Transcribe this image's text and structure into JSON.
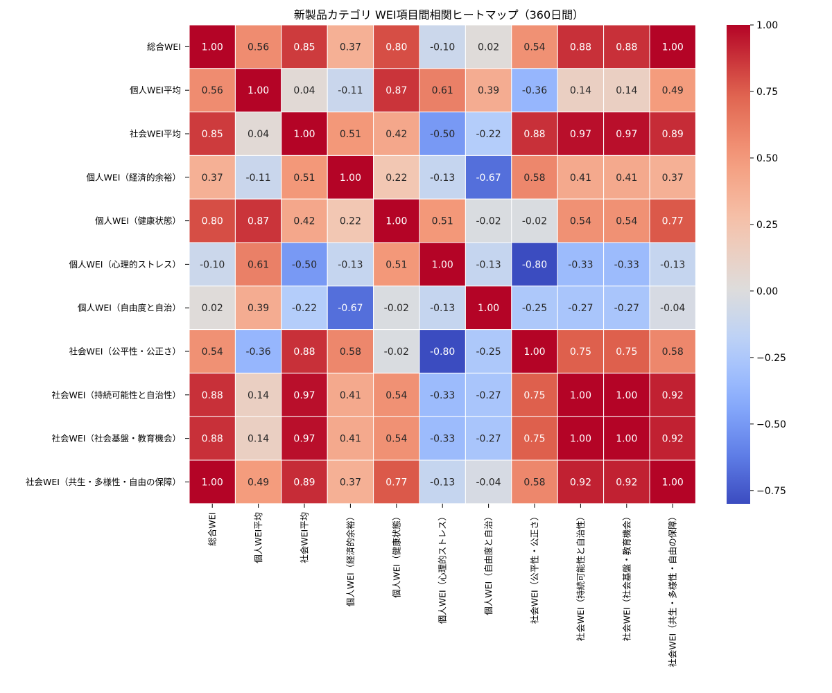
{
  "chart_data": {
    "type": "heatmap",
    "title": "新製品カテゴリ WEI項目間相関ヒートマップ（360日間）",
    "row_labels": [
      "総合WEI",
      "個人WEI平均",
      "社会WEI平均",
      "個人WEI（経済的余裕）",
      "個人WEI（健康状態）",
      "個人WEI（心理的ストレス）",
      "個人WEI（自由度と自治）",
      "社会WEI（公平性・公正さ）",
      "社会WEI（持続可能性と自治性）",
      "社会WEI（社会基盤・教育機会）",
      "社会WEI（共生・多様性・自由の保障）"
    ],
    "col_labels": [
      "総合WEI",
      "個人WEI平均",
      "社会WEI平均",
      "個人WEI（経済的余裕）",
      "個人WEI（健康状態）",
      "個人WEI（心理的ストレス）",
      "個人WEI（自由度と自治）",
      "社会WEI（公平性・公正さ）",
      "社会WEI（持続可能性と自治性）",
      "社会WEI（社会基盤・教育機会）",
      "社会WEI（共生・多様性・自由の保障）"
    ],
    "values": [
      [
        1.0,
        0.56,
        0.85,
        0.37,
        0.8,
        -0.1,
        0.02,
        0.54,
        0.88,
        0.88,
        1.0
      ],
      [
        0.56,
        1.0,
        0.04,
        -0.11,
        0.87,
        0.61,
        0.39,
        -0.36,
        0.14,
        0.14,
        0.49
      ],
      [
        0.85,
        0.04,
        1.0,
        0.51,
        0.42,
        -0.5,
        -0.22,
        0.88,
        0.97,
        0.97,
        0.89
      ],
      [
        0.37,
        -0.11,
        0.51,
        1.0,
        0.22,
        -0.13,
        -0.67,
        0.58,
        0.41,
        0.41,
        0.37
      ],
      [
        0.8,
        0.87,
        0.42,
        0.22,
        1.0,
        0.51,
        -0.02,
        -0.02,
        0.54,
        0.54,
        0.77
      ],
      [
        -0.1,
        0.61,
        -0.5,
        -0.13,
        0.51,
        1.0,
        -0.13,
        -0.8,
        -0.33,
        -0.33,
        -0.13
      ],
      [
        0.02,
        0.39,
        -0.22,
        -0.67,
        -0.02,
        -0.13,
        1.0,
        -0.25,
        -0.27,
        -0.27,
        -0.04
      ],
      [
        0.54,
        -0.36,
        0.88,
        0.58,
        -0.02,
        -0.8,
        -0.25,
        1.0,
        0.75,
        0.75,
        0.58
      ],
      [
        0.88,
        0.14,
        0.97,
        0.41,
        0.54,
        -0.33,
        -0.27,
        0.75,
        1.0,
        1.0,
        0.92
      ],
      [
        0.88,
        0.14,
        0.97,
        0.41,
        0.54,
        -0.33,
        -0.27,
        0.75,
        1.0,
        1.0,
        0.92
      ],
      [
        1.0,
        0.49,
        0.89,
        0.37,
        0.77,
        -0.13,
        -0.04,
        0.58,
        0.92,
        0.92,
        1.0
      ]
    ],
    "value_format": "0.00",
    "colormap": "coolwarm",
    "vmin": -0.8,
    "vmax": 1.0,
    "colorbar_ticks": [
      1.0,
      0.75,
      0.5,
      0.25,
      0.0,
      -0.25,
      -0.5,
      -0.75
    ],
    "colorbar_tick_labels": [
      "1.00",
      "0.75",
      "0.50",
      "0.25",
      "0.00",
      "−0.25",
      "−0.50",
      "−0.75"
    ],
    "colors": {
      "cool": "#3b4cc0",
      "neutral": "#dddddd",
      "warm": "#b40426",
      "grid": "#ffffff"
    }
  }
}
